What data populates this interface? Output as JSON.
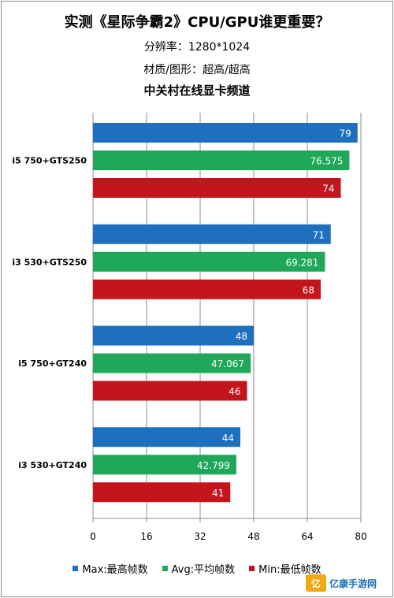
{
  "header": {
    "title": "实测《星际争霸2》CPU/GPU谁更重要？",
    "resolution": "分辨率：1280*1024",
    "quality": "材质/图形：超高/超高",
    "source": "中关村在线显卡频道"
  },
  "chart_data": {
    "type": "bar",
    "orientation": "horizontal",
    "categories": [
      "i5 750+GTS250",
      "i3 530+GTS250",
      "i5 750+GT240",
      "i3 530+GT240"
    ],
    "series": [
      {
        "name": "Max:最高帧数",
        "color": "#1e6fbd",
        "values": [
          79,
          71,
          48,
          44
        ]
      },
      {
        "name": "Avg:平均帧数",
        "color": "#1fa85a",
        "values": [
          76.575,
          69.281,
          47.067,
          42.799
        ]
      },
      {
        "name": "Min:最低帧数",
        "color": "#c4151c",
        "values": [
          74,
          68,
          46,
          41
        ]
      }
    ],
    "value_labels": [
      [
        "79",
        "76.575",
        "74"
      ],
      [
        "71",
        "69.281",
        "68"
      ],
      [
        "48",
        "47.067",
        "46"
      ],
      [
        "44",
        "42.799",
        "41"
      ]
    ],
    "xlim": [
      0,
      80
    ],
    "xticks": [
      "0",
      "16",
      "32",
      "48",
      "64",
      "80"
    ],
    "grid": true,
    "legend_position": "bottom"
  },
  "legend": {
    "max_label": "Max:最高帧数",
    "avg_label": "Avg:平均帧数",
    "min_label": "Min:最低帧数"
  },
  "watermark": {
    "logo_text": "亿",
    "text": "亿康手游网"
  }
}
